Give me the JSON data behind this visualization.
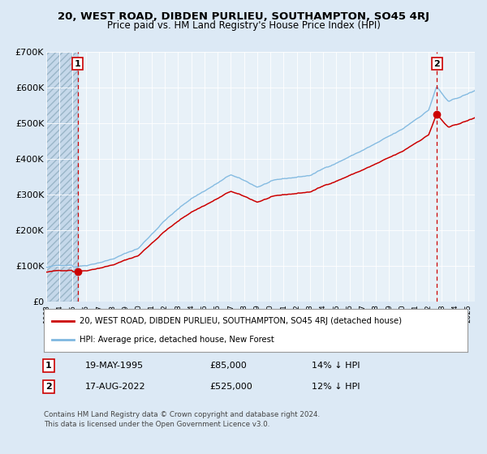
{
  "title": "20, WEST ROAD, DIBDEN PURLIEU, SOUTHAMPTON, SO45 4RJ",
  "subtitle": "Price paid vs. HM Land Registry's House Price Index (HPI)",
  "hpi_label": "HPI: Average price, detached house, New Forest",
  "property_label": "20, WEST ROAD, DIBDEN PURLIEU, SOUTHAMPTON, SO45 4RJ (detached house)",
  "sale1_date": "19-MAY-1995",
  "sale1_price": "£85,000",
  "sale1_hpi": "14% ↓ HPI",
  "sale2_date": "17-AUG-2022",
  "sale2_price": "£525,000",
  "sale2_hpi": "12% ↓ HPI",
  "footer": "Contains HM Land Registry data © Crown copyright and database right 2024.\nThis data is licensed under the Open Government Licence v3.0.",
  "bg_color": "#dce9f5",
  "plot_bg_color": "#dce9f5",
  "chart_inner_bg": "#e8f1f8",
  "hatch_color": "#b0c4d8",
  "grid_color": "#ffffff",
  "hpi_color": "#7fb8e0",
  "property_color": "#cc0000",
  "dashed_color": "#cc0000",
  "ylim": [
    0,
    700000
  ],
  "yticks": [
    0,
    100000,
    200000,
    300000,
    400000,
    500000,
    600000,
    700000
  ],
  "sale1_x": 1995.38,
  "sale1_y": 85000,
  "sale2_x": 2022.63,
  "sale2_y": 525000,
  "xmin": 1993.0,
  "xmax": 2025.5
}
